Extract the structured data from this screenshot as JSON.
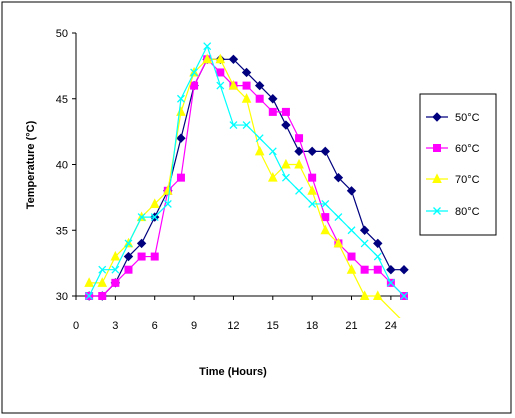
{
  "chart_data": {
    "type": "line",
    "title": "",
    "xlabel": "Time (Hours)",
    "ylabel": "Temperature (°C)",
    "xlim": [
      0,
      25
    ],
    "ylim": [
      30,
      50
    ],
    "x_ticks": [
      0,
      3,
      6,
      9,
      12,
      15,
      18,
      21,
      24
    ],
    "y_ticks": [
      30,
      35,
      40,
      45,
      50
    ],
    "grid": false,
    "legend_position": "right",
    "series": [
      {
        "name": "50°C",
        "color": "#00007f",
        "marker": "diamond",
        "x": [
          1,
          2,
          3,
          4,
          5,
          6,
          7,
          8,
          9,
          10,
          11,
          12,
          13,
          14,
          15,
          16,
          17,
          18,
          19,
          20,
          21,
          22,
          23,
          24,
          25
        ],
        "y": [
          30,
          30,
          31,
          33,
          34,
          36,
          38,
          42,
          46,
          48,
          48,
          48,
          47,
          46,
          45,
          43,
          41,
          41,
          41,
          39,
          38,
          35,
          34,
          32,
          32
        ]
      },
      {
        "name": "60°C",
        "color": "#ff00ff",
        "marker": "square",
        "x": [
          1,
          2,
          3,
          4,
          5,
          6,
          7,
          8,
          9,
          10,
          11,
          12,
          13,
          14,
          15,
          16,
          17,
          18,
          19,
          20,
          21,
          22,
          23,
          24,
          25
        ],
        "y": [
          30,
          30,
          31,
          32,
          33,
          33,
          38,
          39,
          46,
          48,
          47,
          46,
          46,
          45,
          44,
          44,
          42,
          39,
          36,
          34,
          33,
          32,
          32,
          31,
          30
        ]
      },
      {
        "name": "70°C",
        "color": "#ffff00",
        "marker": "triangle",
        "x": [
          1,
          2,
          3,
          4,
          5,
          6,
          7,
          8,
          9,
          10,
          11,
          12,
          13,
          14,
          15,
          16,
          17,
          18,
          19,
          20,
          21,
          22,
          23,
          24,
          25
        ],
        "y": [
          31,
          31,
          33,
          34,
          36,
          37,
          38,
          44,
          47,
          48,
          48,
          46,
          45,
          41,
          39,
          40,
          40,
          38,
          35,
          34,
          32,
          30,
          30,
          29,
          28
        ]
      },
      {
        "name": "80°C",
        "color": "#00ffff",
        "marker": "x",
        "x": [
          1,
          2,
          3,
          4,
          5,
          6,
          7,
          8,
          9,
          10,
          11,
          12,
          13,
          14,
          15,
          16,
          17,
          18,
          19,
          20,
          21,
          22,
          23,
          24,
          25
        ],
        "y": [
          30,
          32,
          32,
          34,
          36,
          36,
          37,
          45,
          47,
          49,
          46,
          43,
          43,
          42,
          41,
          39,
          38,
          37,
          37,
          36,
          35,
          34,
          33,
          31,
          30
        ]
      }
    ]
  }
}
